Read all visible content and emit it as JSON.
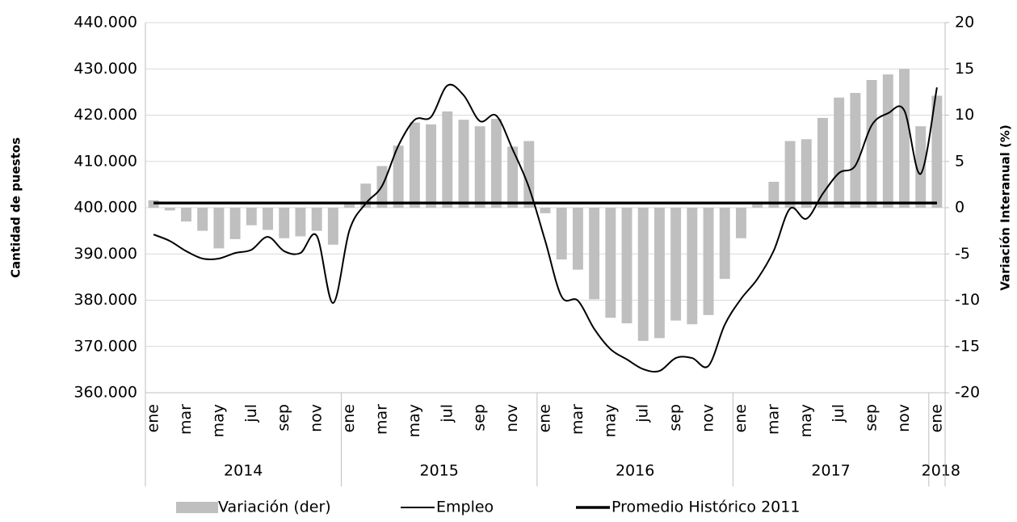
{
  "chart_data": {
    "type": "bar_line",
    "ylabel": "Cantidad de puestos",
    "y2label": "Variación Interanual (%)",
    "categories": [
      "ene",
      null,
      "mar",
      null,
      "may",
      null,
      "jul",
      null,
      "sep",
      null,
      "nov",
      null,
      "ene",
      null,
      "mar",
      null,
      "may",
      null,
      "jul",
      null,
      "sep",
      null,
      "nov",
      null,
      "ene",
      null,
      "mar",
      null,
      "may",
      null,
      "jul",
      null,
      "sep",
      null,
      "nov",
      null,
      "ene",
      null,
      "mar",
      null,
      "may",
      null,
      "jul",
      null,
      "sep",
      null,
      "nov",
      null,
      "ene"
    ],
    "category_groups": [
      "2014",
      "2015",
      "2016",
      "2017",
      "2018"
    ],
    "ylim": [
      360000,
      440000
    ],
    "yticks": [
      {
        "value": 360000,
        "label": "360.000"
      },
      {
        "value": 370000,
        "label": "370.000"
      },
      {
        "value": 380000,
        "label": "380.000"
      },
      {
        "value": 390000,
        "label": "390.000"
      },
      {
        "value": 400000,
        "label": "400.000"
      },
      {
        "value": 410000,
        "label": "410.000"
      },
      {
        "value": 420000,
        "label": "420.000"
      },
      {
        "value": 430000,
        "label": "430.000"
      },
      {
        "value": 440000,
        "label": "440.000"
      }
    ],
    "y2lim": [
      -20,
      20
    ],
    "y2ticks": [
      -20,
      -15,
      -10,
      -5,
      0,
      5,
      10,
      15,
      20
    ],
    "grid": true,
    "legend": "bottom",
    "series": [
      {
        "name": "Variación (der)",
        "kind": "bar",
        "axis": "y2",
        "color": "#bfbfbf",
        "values": [
          0.8,
          -0.3,
          -1.5,
          -2.5,
          -4.4,
          -3.4,
          -1.9,
          -2.4,
          -3.3,
          -3.1,
          -2.5,
          -4.0,
          0.6,
          2.6,
          4.5,
          6.7,
          9.2,
          9.0,
          10.4,
          9.5,
          8.8,
          9.6,
          6.6,
          7.2,
          -0.6,
          -5.6,
          -6.7,
          -9.9,
          -11.9,
          -12.5,
          -14.4,
          -14.1,
          -12.2,
          -12.6,
          -11.6,
          -7.7,
          -3.3,
          0.5,
          2.8,
          7.2,
          7.4,
          9.7,
          11.9,
          12.4,
          13.8,
          14.4,
          15.0,
          8.8,
          12.1
        ]
      },
      {
        "name": "Empleo",
        "kind": "line",
        "color": "#000000",
        "width": 2,
        "values": [
          394200,
          392800,
          390600,
          389000,
          389000,
          390200,
          390900,
          393700,
          390600,
          390200,
          393900,
          379400,
          395100,
          400900,
          404700,
          413400,
          419000,
          419600,
          426400,
          424300,
          418700,
          419900,
          412600,
          404400,
          392800,
          380800,
          379900,
          373800,
          369400,
          367200,
          365100,
          364700,
          367500,
          367500,
          365800,
          374700,
          380300,
          384600,
          390700,
          399800,
          397600,
          403000,
          407500,
          409100,
          417800,
          420400,
          421000,
          407300,
          426000
        ]
      },
      {
        "name": "Promedio Histórico 2011",
        "kind": "line",
        "color": "#000000",
        "width": 3.5,
        "values": [
          401000,
          401000,
          401000,
          401000,
          401000,
          401000,
          401000,
          401000,
          401000,
          401000,
          401000,
          401000,
          401000,
          401000,
          401000,
          401000,
          401000,
          401000,
          401000,
          401000,
          401000,
          401000,
          401000,
          401000,
          401000,
          401000,
          401000,
          401000,
          401000,
          401000,
          401000,
          401000,
          401000,
          401000,
          401000,
          401000,
          401000,
          401000,
          401000,
          401000,
          401000,
          401000,
          401000,
          401000,
          401000,
          401000,
          401000,
          401000,
          401000
        ]
      }
    ]
  }
}
